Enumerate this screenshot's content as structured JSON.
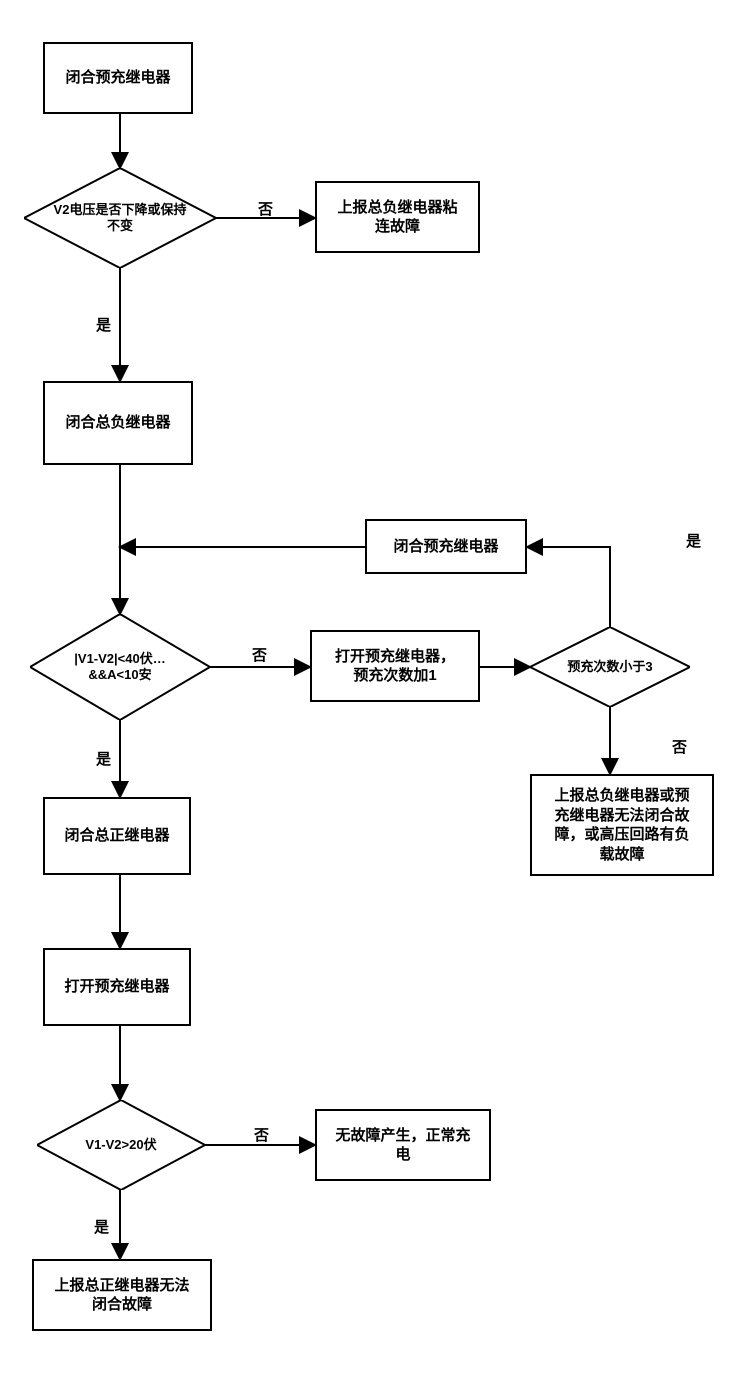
{
  "nodes": {
    "n1": {
      "label": "闭合预充继电器"
    },
    "d1": {
      "label": "V2电压是否下降或保持\n不变"
    },
    "n2": {
      "label": "上报总负继电器粘\n连故障"
    },
    "n3": {
      "label": "闭合总负继电器"
    },
    "n4": {
      "label": "闭合预充继电器"
    },
    "d2": {
      "label": "|V1-V2|<40伏…\n&&A<10安"
    },
    "n5": {
      "label": "打开预充继电器，\n预充次数加1"
    },
    "d3": {
      "label": "预充次数小于3"
    },
    "n6": {
      "label": "上报总负继电器或预\n充继电器无法闭合故\n障，或高压回路有负\n载故障"
    },
    "n7": {
      "label": "闭合总正继电器"
    },
    "n8": {
      "label": "打开预充继电器"
    },
    "d4": {
      "label": "V1-V2>20伏"
    },
    "n9": {
      "label": "无故障产生，正常充\n电"
    },
    "n10": {
      "label": "上报总正继电器无法\n闭合故障"
    }
  },
  "edgeLabels": {
    "d1_no": "否",
    "d1_yes": "是",
    "d2_no": "否",
    "d2_yes": "是",
    "d3_yes": "是",
    "d3_no": "否",
    "d4_no": "否",
    "d4_yes": "是"
  },
  "style": {
    "box_border": "#000000",
    "background": "#ffffff",
    "font_size_box": 15,
    "font_size_label": 15,
    "stroke_width": 2,
    "arrow_size": 7
  }
}
